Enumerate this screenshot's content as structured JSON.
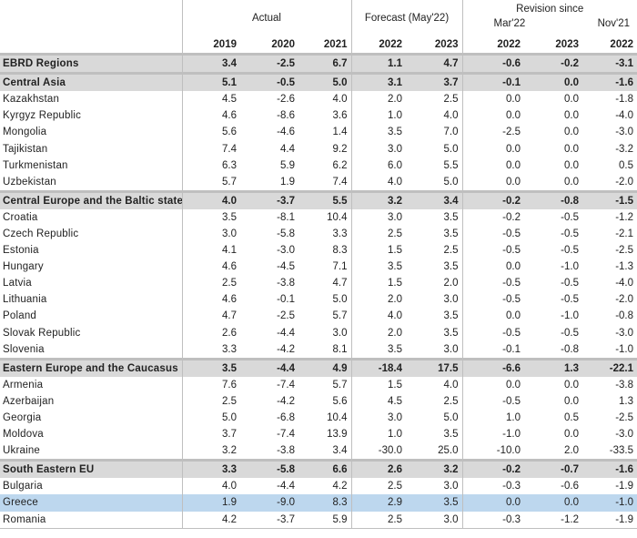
{
  "header": {
    "group_actual": "Actual",
    "group_forecast": "Forecast (May'22)",
    "group_revision": "Revision since",
    "revision_sub_mar": "Mar'22",
    "revision_sub_nov": "Nov'21",
    "years": [
      "2019",
      "2020",
      "2021",
      "2022",
      "2023",
      "2022",
      "2023",
      "2022"
    ]
  },
  "rows": [
    {
      "name": "EBRD Regions",
      "group": true,
      "values": [
        "3.4",
        "-2.5",
        "6.7",
        "1.1",
        "4.7",
        "-0.6",
        "-0.2",
        "-3.1"
      ]
    },
    {
      "name": "Central Asia",
      "group": true,
      "values": [
        "5.1",
        "-0.5",
        "5.0",
        "3.1",
        "3.7",
        "-0.1",
        "0.0",
        "-1.6"
      ]
    },
    {
      "name": "Kazakhstan",
      "values": [
        "4.5",
        "-2.6",
        "4.0",
        "2.0",
        "2.5",
        "0.0",
        "0.0",
        "-1.8"
      ]
    },
    {
      "name": "Kyrgyz Republic",
      "values": [
        "4.6",
        "-8.6",
        "3.6",
        "1.0",
        "4.0",
        "0.0",
        "0.0",
        "-4.0"
      ]
    },
    {
      "name": "Mongolia",
      "values": [
        "5.6",
        "-4.6",
        "1.4",
        "3.5",
        "7.0",
        "-2.5",
        "0.0",
        "-3.0"
      ]
    },
    {
      "name": "Tajikistan",
      "values": [
        "7.4",
        "4.4",
        "9.2",
        "3.0",
        "5.0",
        "0.0",
        "0.0",
        "-3.2"
      ]
    },
    {
      "name": "Turkmenistan",
      "values": [
        "6.3",
        "5.9",
        "6.2",
        "6.0",
        "5.5",
        "0.0",
        "0.0",
        "0.5"
      ]
    },
    {
      "name": "Uzbekistan",
      "values": [
        "5.7",
        "1.9",
        "7.4",
        "4.0",
        "5.0",
        "0.0",
        "0.0",
        "-2.0"
      ]
    },
    {
      "name": "Central Europe and the Baltic states",
      "group": true,
      "values": [
        "4.0",
        "-3.7",
        "5.5",
        "3.2",
        "3.4",
        "-0.2",
        "-0.8",
        "-1.5"
      ]
    },
    {
      "name": "Croatia",
      "values": [
        "3.5",
        "-8.1",
        "10.4",
        "3.0",
        "3.5",
        "-0.2",
        "-0.5",
        "-1.2"
      ]
    },
    {
      "name": "Czech Republic",
      "values": [
        "3.0",
        "-5.8",
        "3.3",
        "2.5",
        "3.5",
        "-0.5",
        "-0.5",
        "-2.1"
      ]
    },
    {
      "name": "Estonia",
      "values": [
        "4.1",
        "-3.0",
        "8.3",
        "1.5",
        "2.5",
        "-0.5",
        "-0.5",
        "-2.5"
      ]
    },
    {
      "name": "Hungary",
      "values": [
        "4.6",
        "-4.5",
        "7.1",
        "3.5",
        "3.5",
        "0.0",
        "-1.0",
        "-1.3"
      ]
    },
    {
      "name": "Latvia",
      "values": [
        "2.5",
        "-3.8",
        "4.7",
        "1.5",
        "2.0",
        "-0.5",
        "-0.5",
        "-4.0"
      ]
    },
    {
      "name": "Lithuania",
      "values": [
        "4.6",
        "-0.1",
        "5.0",
        "2.0",
        "3.0",
        "-0.5",
        "-0.5",
        "-2.0"
      ]
    },
    {
      "name": "Poland",
      "values": [
        "4.7",
        "-2.5",
        "5.7",
        "4.0",
        "3.5",
        "0.0",
        "-1.0",
        "-0.8"
      ]
    },
    {
      "name": "Slovak Republic",
      "values": [
        "2.6",
        "-4.4",
        "3.0",
        "2.0",
        "3.5",
        "-0.5",
        "-0.5",
        "-3.0"
      ]
    },
    {
      "name": "Slovenia",
      "values": [
        "3.3",
        "-4.2",
        "8.1",
        "3.5",
        "3.0",
        "-0.1",
        "-0.8",
        "-1.0"
      ]
    },
    {
      "name": "Eastern Europe and the Caucasus",
      "group": true,
      "values": [
        "3.5",
        "-4.4",
        "4.9",
        "-18.4",
        "17.5",
        "-6.6",
        "1.3",
        "-22.1"
      ]
    },
    {
      "name": "Armenia",
      "values": [
        "7.6",
        "-7.4",
        "5.7",
        "1.5",
        "4.0",
        "0.0",
        "0.0",
        "-3.8"
      ]
    },
    {
      "name": "Azerbaijan",
      "values": [
        "2.5",
        "-4.2",
        "5.6",
        "4.5",
        "2.5",
        "-0.5",
        "0.0",
        "1.3"
      ]
    },
    {
      "name": "Georgia",
      "values": [
        "5.0",
        "-6.8",
        "10.4",
        "3.0",
        "5.0",
        "1.0",
        "0.5",
        "-2.5"
      ]
    },
    {
      "name": "Moldova",
      "values": [
        "3.7",
        "-7.4",
        "13.9",
        "1.0",
        "3.5",
        "-1.0",
        "0.0",
        "-3.0"
      ]
    },
    {
      "name": "Ukraine",
      "values": [
        "3.2",
        "-3.8",
        "3.4",
        "-30.0",
        "25.0",
        "-10.0",
        "2.0",
        "-33.5"
      ]
    },
    {
      "name": "South Eastern EU",
      "group": true,
      "values": [
        "3.3",
        "-5.8",
        "6.6",
        "2.6",
        "3.2",
        "-0.2",
        "-0.7",
        "-1.6"
      ]
    },
    {
      "name": "Bulgaria",
      "values": [
        "4.0",
        "-4.4",
        "4.2",
        "2.5",
        "3.0",
        "-0.3",
        "-0.6",
        "-1.9"
      ]
    },
    {
      "name": "Greece",
      "highlight": true,
      "values": [
        "1.9",
        "-9.0",
        "8.3",
        "2.9",
        "3.5",
        "0.0",
        "0.0",
        "-1.0"
      ]
    },
    {
      "name": "Romania",
      "values": [
        "4.2",
        "-3.7",
        "5.9",
        "2.5",
        "3.0",
        "-0.3",
        "-1.2",
        "-1.9"
      ]
    }
  ],
  "colors": {
    "group_fill": "#d9d9d9",
    "highlight_fill": "#bdd7ee",
    "rule": "#bfbfbf"
  }
}
